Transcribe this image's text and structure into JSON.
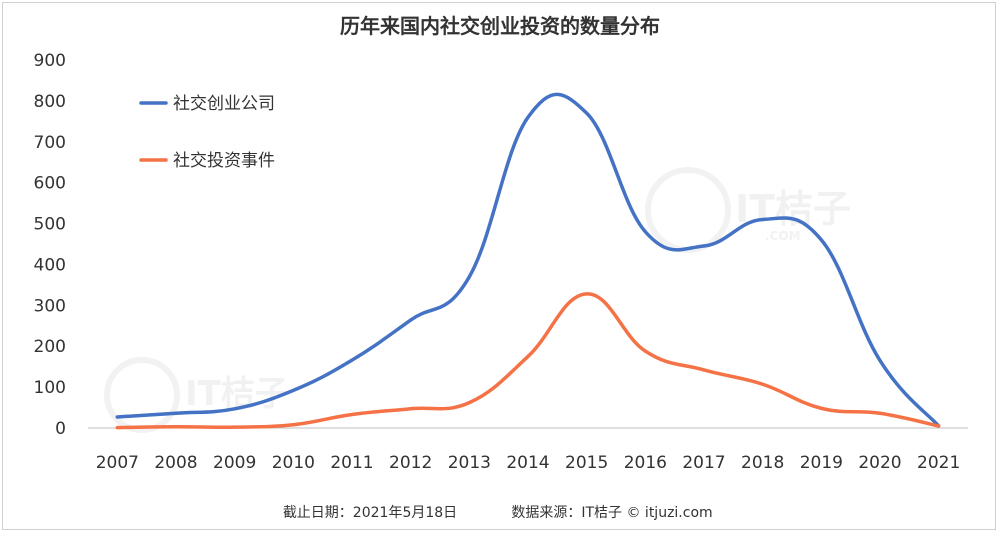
{
  "chart_data": {
    "type": "line",
    "title": "历年来国内社交创业投资的数量分布",
    "xlabel": "",
    "ylabel": "",
    "categories": [
      "2007",
      "2008",
      "2009",
      "2010",
      "2011",
      "2012",
      "2013",
      "2014",
      "2015",
      "2016",
      "2017",
      "2018",
      "2019",
      "2020",
      "2021"
    ],
    "ylim": [
      0,
      900
    ],
    "yticks": [
      "0",
      "100",
      "200",
      "300",
      "400",
      "500",
      "600",
      "700",
      "800",
      "900"
    ],
    "grid": false,
    "legend_position": "top-left",
    "series": [
      {
        "name": "社交创业公司",
        "color": "#4472C4",
        "values": [
          27,
          36,
          47,
          92,
          166,
          264,
          370,
          760,
          770,
          480,
          445,
          510,
          460,
          165,
          5
        ]
      },
      {
        "name": "社交投资事件",
        "color": "#F47245",
        "values": [
          1,
          3,
          2,
          8,
          33,
          47,
          62,
          175,
          328,
          188,
          142,
          107,
          48,
          36,
          5
        ]
      }
    ]
  },
  "footer": {
    "cutoff": "截止日期：2021年5月18日",
    "source": "数据来源：IT桔子 © itjuzi.com"
  },
  "watermark": {
    "name": "IT桔子",
    "url": ".COM"
  }
}
